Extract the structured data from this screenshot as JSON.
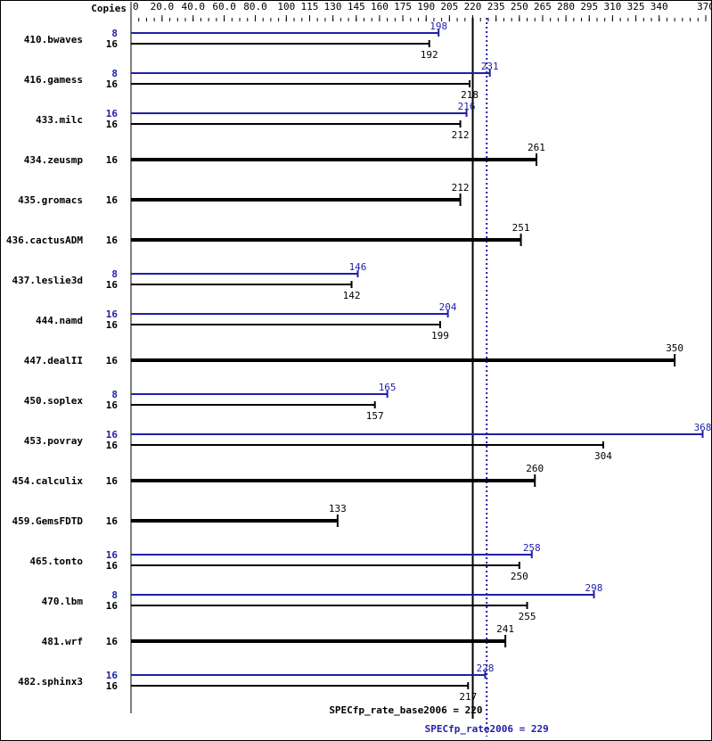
{
  "chart_data": {
    "type": "bar",
    "orientation": "horizontal",
    "copies_header": "Copies",
    "xlim": [
      0,
      370
    ],
    "ticks": [
      "0",
      "20.0",
      "40.0",
      "60.0",
      "80.0",
      "100",
      "115",
      "130",
      "145",
      "160",
      "175",
      "190",
      "205",
      "220",
      "235",
      "250",
      "265",
      "280",
      "295",
      "310",
      "325",
      "340",
      "370"
    ],
    "colors": {
      "base": "#000000",
      "peak": "#1f1fa8"
    },
    "benchmarks": [
      {
        "name": "410.bwaves",
        "peak": {
          "copies": "8",
          "value": 198
        },
        "base": {
          "copies": "16",
          "value": 192
        }
      },
      {
        "name": "416.gamess",
        "peak": {
          "copies": "8",
          "value": 231
        },
        "base": {
          "copies": "16",
          "value": 218
        }
      },
      {
        "name": "433.milc",
        "peak": {
          "copies": "16",
          "value": 216
        },
        "base": {
          "copies": "16",
          "value": 212
        }
      },
      {
        "name": "434.zeusmp",
        "base": {
          "copies": "16",
          "value": 261
        }
      },
      {
        "name": "435.gromacs",
        "base": {
          "copies": "16",
          "value": 212
        }
      },
      {
        "name": "436.cactusADM",
        "base": {
          "copies": "16",
          "value": 251
        }
      },
      {
        "name": "437.leslie3d",
        "peak": {
          "copies": "8",
          "value": 146
        },
        "base": {
          "copies": "16",
          "value": 142
        }
      },
      {
        "name": "444.namd",
        "peak": {
          "copies": "16",
          "value": 204
        },
        "base": {
          "copies": "16",
          "value": 199
        }
      },
      {
        "name": "447.dealII",
        "base": {
          "copies": "16",
          "value": 350
        }
      },
      {
        "name": "450.soplex",
        "peak": {
          "copies": "8",
          "value": 165
        },
        "base": {
          "copies": "16",
          "value": 157
        }
      },
      {
        "name": "453.povray",
        "peak": {
          "copies": "16",
          "value": 368
        },
        "base": {
          "copies": "16",
          "value": 304
        }
      },
      {
        "name": "454.calculix",
        "base": {
          "copies": "16",
          "value": 260
        }
      },
      {
        "name": "459.GemsFDTD",
        "base": {
          "copies": "16",
          "value": 133
        }
      },
      {
        "name": "465.tonto",
        "peak": {
          "copies": "16",
          "value": 258
        },
        "base": {
          "copies": "16",
          "value": 250
        }
      },
      {
        "name": "470.lbm",
        "peak": {
          "copies": "8",
          "value": 298
        },
        "base": {
          "copies": "16",
          "value": 255
        }
      },
      {
        "name": "481.wrf",
        "base": {
          "copies": "16",
          "value": 241
        }
      },
      {
        "name": "482.sphinx3",
        "peak": {
          "copies": "16",
          "value": 228
        },
        "base": {
          "copies": "16",
          "value": 217
        }
      }
    ],
    "summary": {
      "base_label": "SPECfp_rate_base2006 = 220",
      "base_value": 220,
      "peak_label": "SPECfp_rate2006 = 229",
      "peak_value": 229
    }
  }
}
